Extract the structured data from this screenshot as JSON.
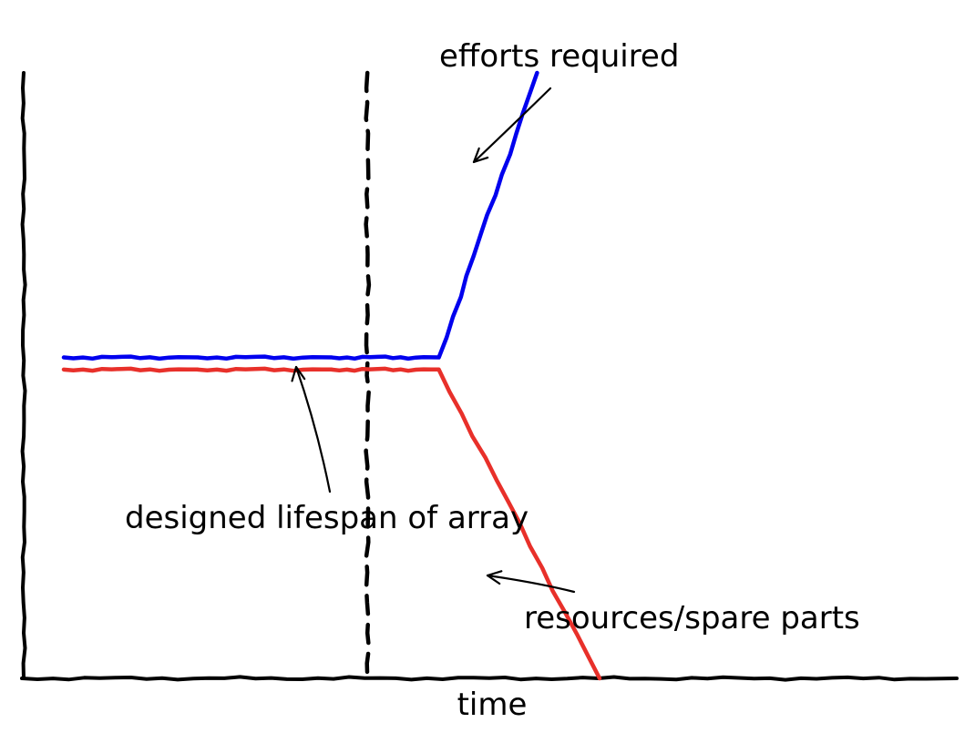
{
  "chart_data": {
    "type": "line",
    "title": "",
    "xlabel": "time",
    "ylabel": "",
    "xlim": [
      0,
      10
    ],
    "ylim": [
      0,
      10
    ],
    "grid": false,
    "series": [
      {
        "name": "efforts required",
        "color": "#0000ee",
        "x": [
          0,
          1.5,
          3,
          4.2,
          5.3
        ],
        "y": [
          5.3,
          5.3,
          5.3,
          5.3,
          10.0
        ]
      },
      {
        "name": "resources/spare parts",
        "color": "#e8302a",
        "x": [
          0,
          1.5,
          3,
          4.2,
          6.0
        ],
        "y": [
          5.1,
          5.1,
          5.1,
          5.1,
          0.0
        ]
      }
    ],
    "vline": {
      "x": 3.4,
      "style": "dashed",
      "color": "#000000",
      "label": "designed lifespan of array"
    },
    "annotations": [
      {
        "text": "efforts required"
      },
      {
        "text": "designed lifespan of array"
      },
      {
        "text": "resources/spare parts"
      }
    ]
  }
}
